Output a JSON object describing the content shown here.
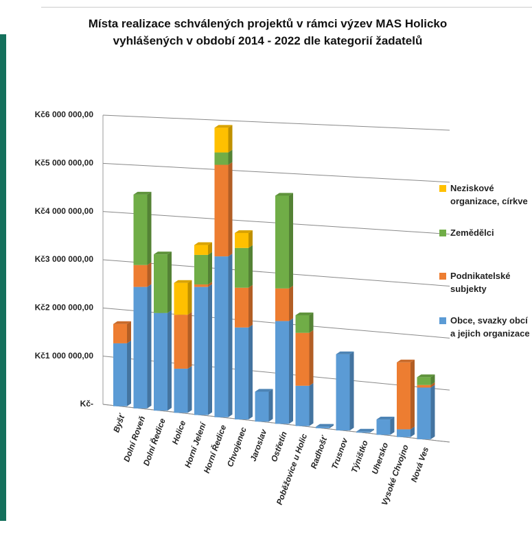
{
  "chart_data": {
    "type": "bar3d_stacked",
    "title": "Místa realizace schválených projektů v rámci výzev MAS Holicko vyhlášených v období 2014 - 2022 dle kategorií žadatelů",
    "categories": [
      "Byšť",
      "Dolní Roveň",
      "Dolní Ředice",
      "Holice",
      "Horní Jelení",
      "Horní Ředice",
      "Chvojenec",
      "Jaroslav",
      "Ostřetín",
      "Poběžovice u Holic",
      "Radhošť",
      "Trusnov",
      "Týništko",
      "Uhersko",
      "Vysoké Chvojno",
      "Nová Ves"
    ],
    "series": [
      {
        "name": "Obce, svazky obcí a jejich organizace",
        "color": "#5b9bd5",
        "values": [
          1300000,
          2500000,
          2000000,
          900000,
          2600000,
          3250000,
          1850000,
          600000,
          2050000,
          800000,
          30000,
          1500000,
          20000,
          300000,
          150000,
          1000000
        ]
      },
      {
        "name": "Podnikatelské subjekty",
        "color": "#ed7d31",
        "values": [
          400000,
          450000,
          0,
          1100000,
          50000,
          1850000,
          800000,
          0,
          650000,
          1050000,
          0,
          0,
          0,
          0,
          1300000,
          50000
        ]
      },
      {
        "name": "Zemědělci",
        "color": "#70ad47",
        "values": [
          0,
          1450000,
          1200000,
          0,
          600000,
          250000,
          800000,
          0,
          1850000,
          350000,
          0,
          0,
          0,
          0,
          0,
          150000
        ]
      },
      {
        "name": "Neziskové organizace, církve",
        "color": "#ffc000",
        "values": [
          0,
          0,
          0,
          650000,
          200000,
          500000,
          300000,
          0,
          0,
          0,
          0,
          0,
          0,
          0,
          0,
          0
        ]
      }
    ],
    "ylim": [
      0,
      6000000
    ],
    "yticks": [
      {
        "value": 0,
        "label": "Kč-"
      },
      {
        "value": 1000000,
        "label": "Kč1 000 000,00"
      },
      {
        "value": 2000000,
        "label": "Kč2 000 000,00"
      },
      {
        "value": 3000000,
        "label": "Kč3 000 000,00"
      },
      {
        "value": 4000000,
        "label": "Kč4 000 000,00"
      },
      {
        "value": 5000000,
        "label": "Kč5 000 000,00"
      },
      {
        "value": 6000000,
        "label": "Kč6 000 000,00"
      }
    ],
    "grid": true
  }
}
